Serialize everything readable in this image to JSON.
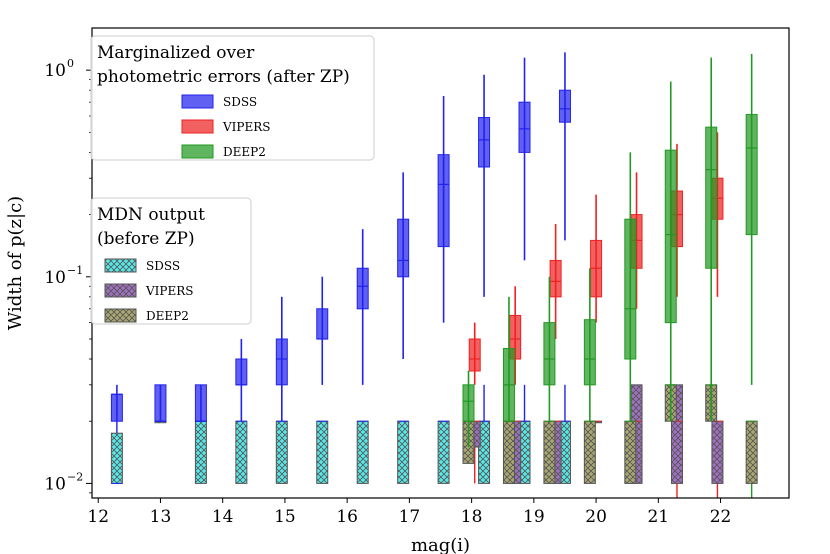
{
  "chart_data": {
    "type": "box",
    "title": "",
    "xlabel": "mag(i)",
    "ylabel": "Width of p(z|c)",
    "xlim": [
      11.9,
      23.1
    ],
    "ylim": [
      0.0085,
      1.6
    ],
    "yscale": "log",
    "x_ticks": [
      12,
      13,
      14,
      15,
      16,
      17,
      18,
      19,
      20,
      21,
      22
    ],
    "y_ticks": [
      {
        "value": 0.01,
        "base": "10",
        "exp": "−2"
      },
      {
        "value": 0.1,
        "base": "10",
        "exp": "−1"
      },
      {
        "value": 1,
        "base": "10",
        "exp": "0"
      }
    ],
    "colors": {
      "SDSS": "#2222ee",
      "VIPERS": "#ee2222",
      "DEEP2": "#229922",
      "SDSS_mdn_fill": "#58e8e8",
      "VIPERS_mdn_fill": "#a070c0",
      "DEEP2_mdn_fill": "#a8a870",
      "mdn_edge": "#555555"
    },
    "legend_after_zp": {
      "title_line1": "Marginalized over",
      "title_line2": "photometric errors (after ZP)",
      "entries": [
        "SDSS",
        "VIPERS",
        "DEEP2"
      ]
    },
    "legend_mdn": {
      "title_line1": "MDN output",
      "title_line2": "(before ZP)",
      "entries": [
        "SDSS",
        "VIPERS",
        "DEEP2"
      ]
    },
    "series_after_zp": [
      {
        "name": "SDSS",
        "boxes": [
          {
            "x": 12.3,
            "low": 0.02,
            "q1": 0.02,
            "med": 0.027,
            "q3": 0.027,
            "high": 0.03
          },
          {
            "x": 13.0,
            "low": 0.02,
            "q1": 0.02,
            "med": 0.02,
            "q3": 0.03,
            "high": 0.03
          },
          {
            "x": 13.65,
            "low": 0.02,
            "q1": 0.02,
            "med": 0.02,
            "q3": 0.03,
            "high": 0.03
          },
          {
            "x": 14.3,
            "low": 0.02,
            "q1": 0.03,
            "med": 0.03,
            "q3": 0.04,
            "high": 0.05
          },
          {
            "x": 14.95,
            "low": 0.02,
            "q1": 0.03,
            "med": 0.04,
            "q3": 0.05,
            "high": 0.08
          },
          {
            "x": 15.6,
            "low": 0.03,
            "q1": 0.05,
            "med": 0.05,
            "q3": 0.07,
            "high": 0.1
          },
          {
            "x": 16.25,
            "low": 0.03,
            "q1": 0.07,
            "med": 0.09,
            "q3": 0.11,
            "high": 0.17
          },
          {
            "x": 16.9,
            "low": 0.04,
            "q1": 0.1,
            "med": 0.12,
            "q3": 0.19,
            "high": 0.32
          },
          {
            "x": 17.55,
            "low": 0.06,
            "q1": 0.14,
            "med": 0.28,
            "q3": 0.39,
            "high": 0.75
          },
          {
            "x": 18.2,
            "low": 0.08,
            "q1": 0.34,
            "med": 0.46,
            "q3": 0.59,
            "high": 0.95
          },
          {
            "x": 18.85,
            "low": 0.12,
            "q1": 0.4,
            "med": 0.52,
            "q3": 0.7,
            "high": 1.15
          },
          {
            "x": 19.5,
            "low": 0.15,
            "q1": 0.56,
            "med": 0.65,
            "q3": 0.8,
            "high": 1.22
          }
        ]
      },
      {
        "name": "VIPERS",
        "boxes": [
          {
            "x": 18.05,
            "low": 0.03,
            "q1": 0.035,
            "med": 0.04,
            "q3": 0.05,
            "high": 0.06
          },
          {
            "x": 18.7,
            "low": 0.03,
            "q1": 0.04,
            "med": 0.05,
            "q3": 0.065,
            "high": 0.09
          },
          {
            "x": 19.35,
            "low": 0.05,
            "q1": 0.08,
            "med": 0.095,
            "q3": 0.12,
            "high": 0.18
          },
          {
            "x": 20.0,
            "low": 0.06,
            "q1": 0.08,
            "med": 0.11,
            "q3": 0.15,
            "high": 0.25
          },
          {
            "x": 20.65,
            "low": 0.07,
            "q1": 0.11,
            "med": 0.15,
            "q3": 0.2,
            "high": 0.32
          },
          {
            "x": 21.3,
            "low": 0.08,
            "q1": 0.14,
            "med": 0.2,
            "q3": 0.26,
            "high": 0.44
          },
          {
            "x": 21.95,
            "low": 0.08,
            "q1": 0.19,
            "med": 0.24,
            "q3": 0.3,
            "high": 0.5
          }
        ]
      },
      {
        "name": "DEEP2",
        "boxes": [
          {
            "x": 17.95,
            "low": 0.015,
            "q1": 0.02,
            "med": 0.025,
            "q3": 0.03,
            "high": 0.035
          },
          {
            "x": 18.6,
            "low": 0.02,
            "q1": 0.02,
            "med": 0.03,
            "q3": 0.045,
            "high": 0.08
          },
          {
            "x": 19.25,
            "low": 0.02,
            "q1": 0.03,
            "med": 0.04,
            "q3": 0.06,
            "high": 0.1
          },
          {
            "x": 19.9,
            "low": 0.02,
            "q1": 0.03,
            "med": 0.04,
            "q3": 0.062,
            "high": 0.11
          },
          {
            "x": 20.55,
            "low": 0.02,
            "q1": 0.04,
            "med": 0.07,
            "q3": 0.19,
            "high": 0.4
          },
          {
            "x": 21.2,
            "low": 0.02,
            "q1": 0.06,
            "med": 0.16,
            "q3": 0.41,
            "high": 0.88
          },
          {
            "x": 21.85,
            "low": 0.02,
            "q1": 0.11,
            "med": 0.33,
            "q3": 0.53,
            "high": 1.15
          },
          {
            "x": 22.5,
            "low": 0.03,
            "q1": 0.16,
            "med": 0.42,
            "q3": 0.61,
            "high": 1.2
          }
        ]
      }
    ],
    "series_mdn": [
      {
        "name": "SDSS",
        "boxes": [
          {
            "x": 12.3,
            "low": 0.01,
            "q1": 0.01,
            "med": 0.01,
            "q3": 0.0175,
            "high": 0.02
          },
          {
            "x": 13.0,
            "low": 0.02,
            "q1": 0.02,
            "med": 0.02,
            "q3": 0.02,
            "high": 0.02
          },
          {
            "x": 13.65,
            "low": 0.01,
            "q1": 0.01,
            "med": 0.02,
            "q3": 0.02,
            "high": 0.02
          },
          {
            "x": 14.3,
            "low": 0.01,
            "q1": 0.01,
            "med": 0.02,
            "q3": 0.02,
            "high": 0.02
          },
          {
            "x": 14.95,
            "low": 0.01,
            "q1": 0.01,
            "med": 0.02,
            "q3": 0.02,
            "high": 0.02
          },
          {
            "x": 15.6,
            "low": 0.01,
            "q1": 0.01,
            "med": 0.02,
            "q3": 0.02,
            "high": 0.02
          },
          {
            "x": 16.25,
            "low": 0.01,
            "q1": 0.01,
            "med": 0.02,
            "q3": 0.02,
            "high": 0.02
          },
          {
            "x": 16.9,
            "low": 0.01,
            "q1": 0.01,
            "med": 0.02,
            "q3": 0.02,
            "high": 0.02
          },
          {
            "x": 17.55,
            "low": 0.01,
            "q1": 0.01,
            "med": 0.02,
            "q3": 0.02,
            "high": 0.02
          },
          {
            "x": 18.2,
            "low": 0.01,
            "q1": 0.01,
            "med": 0.02,
            "q3": 0.02,
            "high": 0.03
          },
          {
            "x": 18.85,
            "low": 0.01,
            "q1": 0.01,
            "med": 0.02,
            "q3": 0.02,
            "high": 0.03
          },
          {
            "x": 19.5,
            "low": 0.01,
            "q1": 0.01,
            "med": 0.02,
            "q3": 0.02,
            "high": 0.03
          }
        ]
      },
      {
        "name": "VIPERS",
        "boxes": [
          {
            "x": 18.05,
            "low": 0.01,
            "q1": 0.015,
            "med": 0.02,
            "q3": 0.02,
            "high": 0.02
          },
          {
            "x": 18.7,
            "low": 0.01,
            "q1": 0.01,
            "med": 0.02,
            "q3": 0.02,
            "high": 0.02
          },
          {
            "x": 19.35,
            "low": 0.01,
            "q1": 0.01,
            "med": 0.02,
            "q3": 0.02,
            "high": 0.02
          },
          {
            "x": 20.0,
            "low": 0.02,
            "q1": 0.02,
            "med": 0.02,
            "q3": 0.02,
            "high": 0.02
          },
          {
            "x": 20.65,
            "low": 0.01,
            "q1": 0.01,
            "med": 0.02,
            "q3": 0.03,
            "high": 0.03
          },
          {
            "x": 21.3,
            "low": 0.008,
            "q1": 0.01,
            "med": 0.02,
            "q3": 0.03,
            "high": 0.03
          },
          {
            "x": 21.95,
            "low": 0.008,
            "q1": 0.01,
            "med": 0.02,
            "q3": 0.02,
            "high": 0.02
          }
        ]
      },
      {
        "name": "DEEP2",
        "boxes": [
          {
            "x": 17.95,
            "low": 0.0125,
            "q1": 0.0125,
            "med": 0.02,
            "q3": 0.02,
            "high": 0.02
          },
          {
            "x": 18.6,
            "low": 0.01,
            "q1": 0.01,
            "med": 0.02,
            "q3": 0.02,
            "high": 0.02
          },
          {
            "x": 19.25,
            "low": 0.01,
            "q1": 0.01,
            "med": 0.02,
            "q3": 0.02,
            "high": 0.02
          },
          {
            "x": 19.9,
            "low": 0.01,
            "q1": 0.01,
            "med": 0.02,
            "q3": 0.02,
            "high": 0.02
          },
          {
            "x": 20.55,
            "low": 0.01,
            "q1": 0.01,
            "med": 0.02,
            "q3": 0.02,
            "high": 0.02
          },
          {
            "x": 21.2,
            "low": 0.02,
            "q1": 0.02,
            "med": 0.03,
            "q3": 0.03,
            "high": 0.03
          },
          {
            "x": 21.85,
            "low": 0.02,
            "q1": 0.02,
            "med": 0.03,
            "q3": 0.03,
            "high": 0.03
          },
          {
            "x": 22.5,
            "low": 0.008,
            "q1": 0.01,
            "med": 0.02,
            "q3": 0.02,
            "high": 0.02
          }
        ]
      }
    ]
  }
}
